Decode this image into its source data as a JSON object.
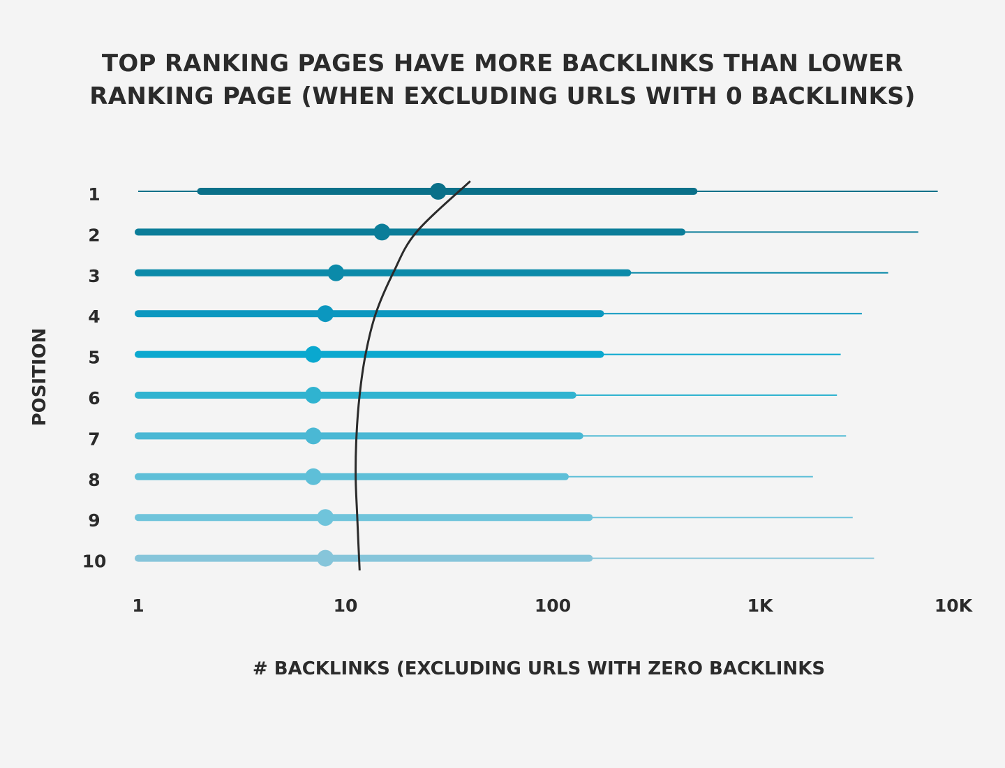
{
  "title_lines": [
    "TOP RANKING PAGES HAVE MORE BACKLINKS THAN LOWER",
    "RANKING PAGE (WHEN EXCLUDING URLS WITH 0 BACKLINKS)"
  ],
  "chart_data": {
    "type": "scatter",
    "title": "TOP RANKING PAGES HAVE MORE BACKLINKS THAN LOWER RANKING PAGE (WHEN EXCLUDING URLS WITH 0 BACKLINKS)",
    "xlabel": "# BACKLINKS (EXCLUDING URLS WITH ZERO BACKLINKS",
    "ylabel": "POSITION",
    "x_scale": "log",
    "xlim": [
      1,
      10000
    ],
    "x_ticks": [
      1,
      10,
      100,
      1000,
      10000
    ],
    "x_tick_labels": [
      "1",
      "10",
      "100",
      "1K",
      "10K"
    ],
    "categories": [
      "1",
      "2",
      "3",
      "4",
      "5",
      "6",
      "7",
      "8",
      "9",
      "10"
    ],
    "rows": [
      {
        "position": "1",
        "min": 1,
        "q1": 2,
        "median": 28,
        "q3": 480,
        "max": 7200,
        "color": "#0a7089"
      },
      {
        "position": "2",
        "min": 1,
        "q1": 1,
        "median": 15,
        "q3": 420,
        "max": 5800,
        "color": "#0b7d99"
      },
      {
        "position": "3",
        "min": 1,
        "q1": 1,
        "median": 9,
        "q3": 230,
        "max": 4150,
        "color": "#0b8aa9"
      },
      {
        "position": "4",
        "min": 1,
        "q1": 1,
        "median": 8,
        "q3": 170,
        "max": 3100,
        "color": "#0b97bf"
      },
      {
        "position": "5",
        "min": 1,
        "q1": 1,
        "median": 7,
        "q3": 170,
        "max": 2450,
        "color": "#0aa8cf"
      },
      {
        "position": "6",
        "min": 1,
        "q1": 1,
        "median": 7,
        "q3": 125,
        "max": 2350,
        "color": "#30b3d0"
      },
      {
        "position": "7",
        "min": 1,
        "q1": 1,
        "median": 7,
        "q3": 135,
        "max": 2600,
        "color": "#4ab8d4"
      },
      {
        "position": "8",
        "min": 1,
        "q1": 1,
        "median": 7,
        "q3": 115,
        "max": 1800,
        "color": "#5ebfd8"
      },
      {
        "position": "9",
        "min": 1,
        "q1": 1,
        "median": 8,
        "q3": 150,
        "max": 2800,
        "color": "#6fc4db"
      },
      {
        "position": "10",
        "min": 1,
        "q1": 1,
        "median": 8,
        "q3": 150,
        "max": 3550,
        "color": "#86c5da"
      }
    ],
    "trend_line": {
      "color": "#2b2b2b",
      "points": [
        [
          40,
          0.75
        ],
        [
          22,
          2
        ],
        [
          17,
          3
        ],
        [
          14,
          4
        ],
        [
          12.5,
          5
        ],
        [
          11.7,
          6
        ],
        [
          11.3,
          7
        ],
        [
          11.2,
          8
        ],
        [
          11.4,
          9
        ],
        [
          11.7,
          10.3
        ]
      ]
    },
    "grid": false,
    "legend": "none"
  }
}
